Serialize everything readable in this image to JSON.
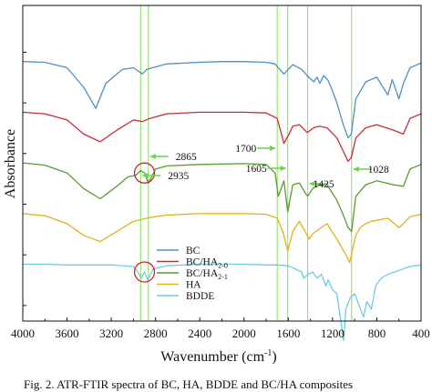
{
  "chart_data": {
    "type": "line",
    "xlabel": "Wavenumber (cm",
    "xlabel_sup": "-1",
    "xlabel_end": ")",
    "ylabel": "Absorbance",
    "xlim": [
      4000,
      400
    ],
    "x_ticks": [
      4000,
      3600,
      3200,
      2800,
      2400,
      2000,
      1600,
      1200,
      800,
      400
    ],
    "y_ticks_labeled": false,
    "grid": false,
    "legend_position": "bottom-left",
    "series": [
      {
        "name": "BC",
        "color": "#4f8fc4",
        "offset": 2.6,
        "points": [
          [
            4000,
            0.02
          ],
          [
            3800,
            0.03
          ],
          [
            3600,
            0.1
          ],
          [
            3450,
            0.35
          ],
          [
            3340,
            0.62
          ],
          [
            3250,
            0.3
          ],
          [
            3100,
            0.12
          ],
          [
            3000,
            0.1
          ],
          [
            2920,
            0.18
          ],
          [
            2880,
            0.12
          ],
          [
            2700,
            0.05
          ],
          [
            2400,
            0.03
          ],
          [
            2200,
            0.02
          ],
          [
            2000,
            0.02
          ],
          [
            1800,
            0.03
          ],
          [
            1720,
            0.05
          ],
          [
            1640,
            0.18
          ],
          [
            1560,
            0.06
          ],
          [
            1480,
            0.12
          ],
          [
            1430,
            0.2
          ],
          [
            1370,
            0.28
          ],
          [
            1340,
            0.22
          ],
          [
            1315,
            0.3
          ],
          [
            1280,
            0.2
          ],
          [
            1240,
            0.26
          ],
          [
            1200,
            0.4
          ],
          [
            1160,
            0.55
          ],
          [
            1110,
            0.8
          ],
          [
            1060,
            1.0
          ],
          [
            1030,
            0.95
          ],
          [
            990,
            0.5
          ],
          [
            900,
            0.28
          ],
          [
            800,
            0.22
          ],
          [
            700,
            0.45
          ],
          [
            660,
            0.25
          ],
          [
            600,
            0.5
          ],
          [
            560,
            0.3
          ],
          [
            500,
            0.1
          ],
          [
            420,
            0.05
          ],
          [
            400,
            0.04
          ]
        ]
      },
      {
        "name": "BC/HA",
        "sub": "2-0",
        "color": "#cc2b36",
        "offset": 1.95,
        "points": [
          [
            4000,
            0.02
          ],
          [
            3800,
            0.04
          ],
          [
            3600,
            0.12
          ],
          [
            3450,
            0.3
          ],
          [
            3300,
            0.4
          ],
          [
            3150,
            0.25
          ],
          [
            3000,
            0.12
          ],
          [
            2920,
            0.14
          ],
          [
            2850,
            0.1
          ],
          [
            2700,
            0.04
          ],
          [
            2400,
            0.02
          ],
          [
            2000,
            0.02
          ],
          [
            1800,
            0.03
          ],
          [
            1700,
            0.1
          ],
          [
            1640,
            0.42
          ],
          [
            1600,
            0.32
          ],
          [
            1560,
            0.2
          ],
          [
            1500,
            0.18
          ],
          [
            1430,
            0.28
          ],
          [
            1370,
            0.22
          ],
          [
            1320,
            0.2
          ],
          [
            1250,
            0.22
          ],
          [
            1160,
            0.35
          ],
          [
            1110,
            0.5
          ],
          [
            1060,
            0.65
          ],
          [
            1030,
            0.6
          ],
          [
            990,
            0.35
          ],
          [
            900,
            0.22
          ],
          [
            800,
            0.18
          ],
          [
            650,
            0.25
          ],
          [
            560,
            0.3
          ],
          [
            500,
            0.1
          ],
          [
            400,
            0.04
          ]
        ]
      },
      {
        "name": "BC/HA",
        "sub": "2-1",
        "color": "#5a9a2e",
        "offset": 1.3,
        "points": [
          [
            4000,
            0.02
          ],
          [
            3800,
            0.05
          ],
          [
            3600,
            0.15
          ],
          [
            3450,
            0.35
          ],
          [
            3300,
            0.48
          ],
          [
            3150,
            0.32
          ],
          [
            3050,
            0.2
          ],
          [
            2980,
            0.18
          ],
          [
            2935,
            0.12
          ],
          [
            2900,
            0.15
          ],
          [
            2865,
            0.28
          ],
          [
            2800,
            0.1
          ],
          [
            2700,
            0.06
          ],
          [
            2400,
            0.04
          ],
          [
            2000,
            0.03
          ],
          [
            1800,
            0.04
          ],
          [
            1720,
            0.15
          ],
          [
            1690,
            0.45
          ],
          [
            1640,
            0.25
          ],
          [
            1605,
            0.65
          ],
          [
            1560,
            0.3
          ],
          [
            1500,
            0.28
          ],
          [
            1450,
            0.4
          ],
          [
            1425,
            0.45
          ],
          [
            1380,
            0.35
          ],
          [
            1320,
            0.3
          ],
          [
            1250,
            0.3
          ],
          [
            1160,
            0.5
          ],
          [
            1100,
            0.7
          ],
          [
            1060,
            0.85
          ],
          [
            1028,
            0.9
          ],
          [
            990,
            0.45
          ],
          [
            900,
            0.3
          ],
          [
            800,
            0.25
          ],
          [
            650,
            0.3
          ],
          [
            560,
            0.32
          ],
          [
            500,
            0.1
          ],
          [
            400,
            0.04
          ]
        ]
      },
      {
        "name": "HA",
        "color": "#e2b21b",
        "offset": 0.65,
        "points": [
          [
            4000,
            0.02
          ],
          [
            3800,
            0.05
          ],
          [
            3600,
            0.15
          ],
          [
            3450,
            0.3
          ],
          [
            3300,
            0.38
          ],
          [
            3150,
            0.25
          ],
          [
            3000,
            0.12
          ],
          [
            2935,
            0.1
          ],
          [
            2880,
            0.08
          ],
          [
            2800,
            0.06
          ],
          [
            2700,
            0.04
          ],
          [
            2400,
            0.02
          ],
          [
            2000,
            0.02
          ],
          [
            1800,
            0.03
          ],
          [
            1700,
            0.08
          ],
          [
            1650,
            0.25
          ],
          [
            1605,
            0.5
          ],
          [
            1560,
            0.25
          ],
          [
            1500,
            0.12
          ],
          [
            1410,
            0.35
          ],
          [
            1380,
            0.28
          ],
          [
            1320,
            0.22
          ],
          [
            1250,
            0.15
          ],
          [
            1160,
            0.35
          ],
          [
            1080,
            0.55
          ],
          [
            1045,
            0.65
          ],
          [
            1030,
            0.55
          ],
          [
            990,
            0.3
          ],
          [
            950,
            0.2
          ],
          [
            900,
            0.15
          ],
          [
            850,
            0.12
          ],
          [
            700,
            0.08
          ],
          [
            600,
            0.2
          ],
          [
            560,
            0.15
          ],
          [
            500,
            0.06
          ],
          [
            400,
            0.03
          ]
        ]
      },
      {
        "name": "BDDE",
        "color": "#6fcbe3",
        "offset": 0.0,
        "points": [
          [
            4000,
            0.02
          ],
          [
            3800,
            0.02
          ],
          [
            3600,
            0.03
          ],
          [
            3400,
            0.03
          ],
          [
            3200,
            0.03
          ],
          [
            3000,
            0.05
          ],
          [
            2960,
            0.12
          ],
          [
            2930,
            0.2
          ],
          [
            2900,
            0.12
          ],
          [
            2870,
            0.22
          ],
          [
            2820,
            0.08
          ],
          [
            2700,
            0.04
          ],
          [
            2400,
            0.02
          ],
          [
            2000,
            0.02
          ],
          [
            1800,
            0.03
          ],
          [
            1700,
            0.03
          ],
          [
            1600,
            0.04
          ],
          [
            1480,
            0.12
          ],
          [
            1460,
            0.2
          ],
          [
            1420,
            0.15
          ],
          [
            1380,
            0.12
          ],
          [
            1340,
            0.2
          ],
          [
            1300,
            0.15
          ],
          [
            1260,
            0.3
          ],
          [
            1240,
            0.22
          ],
          [
            1200,
            0.35
          ],
          [
            1160,
            0.4
          ],
          [
            1120,
            0.8
          ],
          [
            1100,
            1.0
          ],
          [
            1080,
            0.6
          ],
          [
            1040,
            0.45
          ],
          [
            1000,
            0.4
          ],
          [
            960,
            0.55
          ],
          [
            920,
            0.7
          ],
          [
            890,
            0.5
          ],
          [
            850,
            0.6
          ],
          [
            810,
            0.3
          ],
          [
            760,
            0.2
          ],
          [
            700,
            0.15
          ],
          [
            600,
            0.1
          ],
          [
            500,
            0.05
          ],
          [
            400,
            0.03
          ]
        ]
      }
    ],
    "reference_lines": [
      2935,
      2865,
      1700,
      1605,
      1425,
      1028
    ],
    "annotations": [
      {
        "label": "2865",
        "x": 2865
      },
      {
        "label": "2935",
        "x": 2935
      },
      {
        "label": "1700",
        "x": 1700
      },
      {
        "label": "1605",
        "x": 1605
      },
      {
        "label": "1425",
        "x": 1425
      },
      {
        "label": "1028",
        "x": 1028
      }
    ],
    "circles": [
      {
        "series": "BC/HA2-1",
        "x": 2900
      },
      {
        "series": "BDDE",
        "x": 2900
      }
    ],
    "caption": "Fig. 2. ATR-FTIR spectra of BC, HA, BDDE and BC/HA composites"
  }
}
